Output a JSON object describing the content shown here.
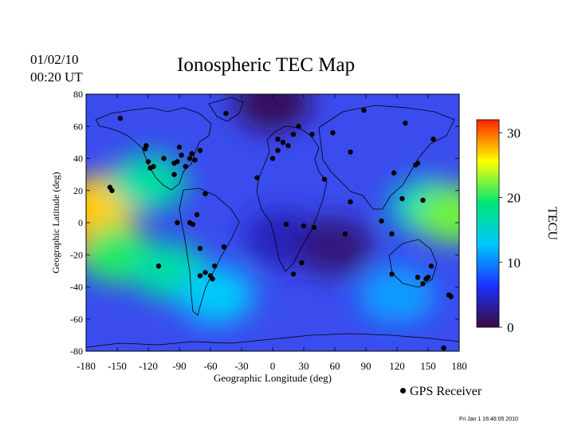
{
  "header": {
    "date": "01/02/10",
    "time": "00:20 UT",
    "stamp": "Fri Jan  1 16:46:05 2010"
  },
  "chart_data": {
    "type": "heatmap",
    "title": "Ionospheric TEC Map",
    "xlabel": "Geographic Longitude (deg)",
    "ylabel": "Geographic Latitude (deg)",
    "xlim": [
      -180,
      180
    ],
    "ylim": [
      -80,
      80
    ],
    "x_ticks": [
      -180,
      -150,
      -120,
      -90,
      -60,
      -30,
      0,
      30,
      60,
      90,
      120,
      150,
      180
    ],
    "y_ticks": [
      -80,
      -60,
      -40,
      -20,
      0,
      20,
      40,
      60,
      80
    ],
    "colorbar": {
      "label": "TECU",
      "range": [
        0,
        32
      ],
      "ticks": [
        0,
        10,
        20,
        30
      ],
      "colors": [
        "#3a0a3e",
        "#1a30ff",
        "#00c8ff",
        "#00e676",
        "#ffff00",
        "#ff2200"
      ]
    },
    "tec_regions": [
      {
        "lon": -175,
        "lat": -5,
        "tec": 31
      },
      {
        "lon": -165,
        "lat": 12,
        "tec": 27
      },
      {
        "lon": -150,
        "lat": -20,
        "tec": 20
      },
      {
        "lon": -120,
        "lat": 25,
        "tec": 17
      },
      {
        "lon": -100,
        "lat": -30,
        "tec": 17
      },
      {
        "lon": -55,
        "lat": -45,
        "tec": 13
      },
      {
        "lon": 10,
        "lat": -10,
        "tec": 4
      },
      {
        "lon": 60,
        "lat": -15,
        "tec": 2
      },
      {
        "lon": 0,
        "lat": 75,
        "tec": 1
      },
      {
        "lon": 150,
        "lat": 10,
        "tec": 16
      },
      {
        "lon": 175,
        "lat": 5,
        "tec": 22
      },
      {
        "lon": 120,
        "lat": -45,
        "tec": 11
      }
    ],
    "receivers": [
      [
        -147,
        65
      ],
      [
        -157,
        22
      ],
      [
        -155,
        20
      ],
      [
        -122,
        48
      ],
      [
        -123,
        46
      ],
      [
        -120,
        38
      ],
      [
        -115,
        35
      ],
      [
        -118,
        34
      ],
      [
        -105,
        40
      ],
      [
        -95,
        30
      ],
      [
        -90,
        47
      ],
      [
        -88,
        42
      ],
      [
        -80,
        40
      ],
      [
        -75,
        39
      ],
      [
        -78,
        43
      ],
      [
        -70,
        45
      ],
      [
        -95,
        37
      ],
      [
        -92,
        38
      ],
      [
        -84,
        35
      ],
      [
        -65,
        18
      ],
      [
        -73,
        5
      ],
      [
        -77,
        -1
      ],
      [
        -80,
        0
      ],
      [
        -92,
        0
      ],
      [
        -110,
        -27
      ],
      [
        -70,
        -16
      ],
      [
        -70,
        -33
      ],
      [
        -65,
        -31
      ],
      [
        -60,
        -33
      ],
      [
        -58,
        -35
      ],
      [
        -56,
        -27
      ],
      [
        -47,
        -15
      ],
      [
        -45,
        68
      ],
      [
        -15,
        28
      ],
      [
        5,
        52
      ],
      [
        10,
        50
      ],
      [
        15,
        48
      ],
      [
        5,
        45
      ],
      [
        0,
        40
      ],
      [
        25,
        60
      ],
      [
        20,
        55
      ],
      [
        38,
        55
      ],
      [
        58,
        56
      ],
      [
        75,
        44
      ],
      [
        50,
        27
      ],
      [
        75,
        13
      ],
      [
        40,
        -3
      ],
      [
        13,
        -1
      ],
      [
        30,
        -2
      ],
      [
        28,
        -25
      ],
      [
        20,
        -32
      ],
      [
        70,
        -7
      ],
      [
        88,
        70
      ],
      [
        128,
        62
      ],
      [
        155,
        52
      ],
      [
        117,
        31
      ],
      [
        140,
        37
      ],
      [
        138,
        36
      ],
      [
        125,
        15
      ],
      [
        145,
        14
      ],
      [
        105,
        1
      ],
      [
        115,
        -7
      ],
      [
        115,
        -32
      ],
      [
        140,
        -34
      ],
      [
        145,
        -38
      ],
      [
        150,
        -34
      ],
      [
        148,
        -35
      ],
      [
        153,
        -27
      ],
      [
        172,
        -46
      ],
      [
        170,
        -45
      ],
      [
        165,
        -78
      ]
    ],
    "legend": {
      "label": "GPS Receiver",
      "position": "bottom-right"
    }
  }
}
